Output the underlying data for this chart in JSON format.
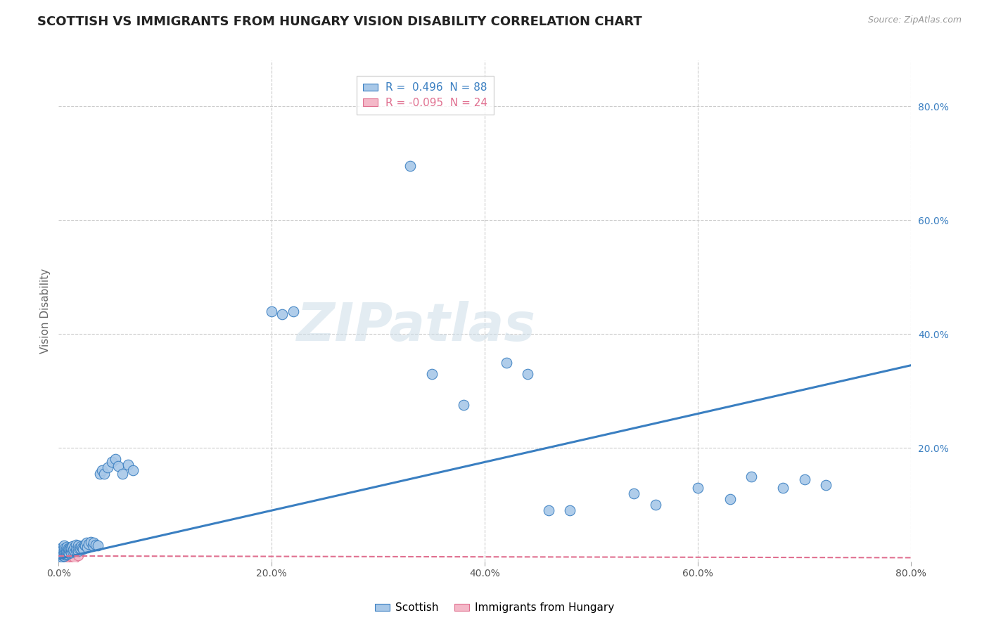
{
  "title": "SCOTTISH VS IMMIGRANTS FROM HUNGARY VISION DISABILITY CORRELATION CHART",
  "source": "Source: ZipAtlas.com",
  "ylabel": "Vision Disability",
  "xlabel": "",
  "r_scottish": 0.496,
  "n_scottish": 88,
  "r_hungary": -0.095,
  "n_hungary": 24,
  "scottish_color": "#a8c8e8",
  "scottish_line_color": "#3a7fc1",
  "hungary_color": "#f4b8c8",
  "hungary_line_color": "#e07090",
  "background_color": "#ffffff",
  "grid_color": "#cccccc",
  "xlim": [
    0.0,
    0.8
  ],
  "ylim": [
    0.0,
    0.88
  ],
  "title_color": "#222222",
  "axis_label_color": "#666666",
  "watermark": "ZIPatlas",
  "scottish_x": [
    0.001,
    0.001,
    0.001,
    0.002,
    0.002,
    0.002,
    0.002,
    0.003,
    0.003,
    0.003,
    0.003,
    0.004,
    0.004,
    0.004,
    0.005,
    0.005,
    0.005,
    0.005,
    0.006,
    0.006,
    0.006,
    0.007,
    0.007,
    0.007,
    0.008,
    0.008,
    0.008,
    0.009,
    0.009,
    0.01,
    0.01,
    0.011,
    0.011,
    0.012,
    0.012,
    0.013,
    0.013,
    0.014,
    0.015,
    0.015,
    0.016,
    0.016,
    0.017,
    0.018,
    0.018,
    0.019,
    0.02,
    0.021,
    0.022,
    0.023,
    0.024,
    0.025,
    0.026,
    0.027,
    0.028,
    0.03,
    0.032,
    0.033,
    0.035,
    0.037,
    0.039,
    0.041,
    0.043,
    0.046,
    0.05,
    0.053,
    0.056,
    0.06,
    0.065,
    0.07,
    0.2,
    0.21,
    0.22,
    0.33,
    0.35,
    0.38,
    0.42,
    0.44,
    0.46,
    0.48,
    0.54,
    0.56,
    0.6,
    0.63,
    0.65,
    0.68,
    0.7,
    0.72
  ],
  "scottish_y": [
    0.01,
    0.015,
    0.02,
    0.008,
    0.012,
    0.018,
    0.022,
    0.009,
    0.014,
    0.019,
    0.025,
    0.011,
    0.016,
    0.021,
    0.01,
    0.015,
    0.02,
    0.028,
    0.013,
    0.018,
    0.024,
    0.012,
    0.017,
    0.022,
    0.014,
    0.019,
    0.026,
    0.016,
    0.023,
    0.015,
    0.022,
    0.018,
    0.025,
    0.016,
    0.024,
    0.019,
    0.027,
    0.021,
    0.018,
    0.026,
    0.02,
    0.03,
    0.022,
    0.019,
    0.028,
    0.024,
    0.023,
    0.027,
    0.025,
    0.022,
    0.03,
    0.028,
    0.033,
    0.025,
    0.031,
    0.035,
    0.028,
    0.033,
    0.03,
    0.028,
    0.155,
    0.16,
    0.155,
    0.165,
    0.175,
    0.18,
    0.168,
    0.155,
    0.17,
    0.16,
    0.44,
    0.435,
    0.44,
    0.695,
    0.33,
    0.275,
    0.35,
    0.33,
    0.09,
    0.09,
    0.12,
    0.1,
    0.13,
    0.11,
    0.15,
    0.13,
    0.145,
    0.135
  ],
  "hungary_x": [
    0.001,
    0.001,
    0.001,
    0.002,
    0.002,
    0.002,
    0.003,
    0.003,
    0.003,
    0.004,
    0.004,
    0.004,
    0.005,
    0.005,
    0.006,
    0.006,
    0.007,
    0.007,
    0.008,
    0.009,
    0.01,
    0.012,
    0.015,
    0.018
  ],
  "hungary_y": [
    0.005,
    0.01,
    0.015,
    0.006,
    0.012,
    0.018,
    0.007,
    0.013,
    0.019,
    0.008,
    0.014,
    0.02,
    0.009,
    0.016,
    0.01,
    0.017,
    0.008,
    0.015,
    0.011,
    0.009,
    0.013,
    0.01,
    0.007,
    0.011
  ],
  "trend_x_start": 0.0,
  "trend_x_end": 0.8,
  "trend_y_start_scottish": 0.005,
  "trend_y_end_scottish": 0.345,
  "trend_y_start_hungary": 0.01,
  "trend_y_end_hungary": 0.007
}
